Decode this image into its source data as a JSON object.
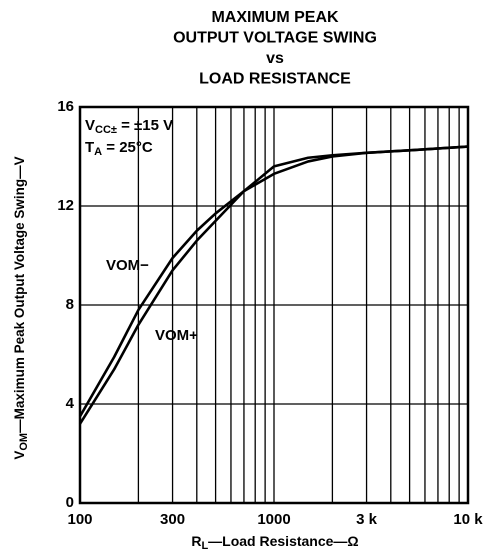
{
  "chart_data": {
    "type": "line",
    "title": [
      "MAXIMUM PEAK",
      "OUTPUT VOLTAGE SWING",
      "vs",
      "LOAD RESISTANCE"
    ],
    "annotations": [
      [
        "V",
        "CC±",
        " = ±15 V"
      ],
      [
        "T",
        "A",
        " = 25°C"
      ]
    ],
    "x_label": [
      "R",
      "L",
      "—Load Resistance—Ω"
    ],
    "y_label": [
      "V",
      "OM",
      "—Maximum Peak Output Voltage Swing—V"
    ],
    "x": [
      100,
      150,
      200,
      300,
      400,
      500,
      700,
      1000,
      1500,
      2000,
      3000,
      5000,
      10000
    ],
    "series": [
      {
        "name": "VOM−",
        "color": "#000000",
        "values": [
          3.5,
          5.9,
          7.8,
          9.9,
          11.0,
          11.7,
          12.6,
          13.3,
          13.8,
          14.0,
          14.15,
          14.25,
          14.4
        ]
      },
      {
        "name": "VOM+",
        "color": "#000000",
        "values": [
          3.2,
          5.4,
          7.2,
          9.4,
          10.6,
          11.4,
          12.6,
          13.6,
          13.95,
          14.05,
          14.15,
          14.25,
          14.4
        ]
      }
    ],
    "xlim": [
      100,
      10000
    ],
    "xlog": true,
    "xticks": [
      100,
      300,
      1000,
      {
        "value": 3000,
        "label": "3 k"
      },
      {
        "value": 10000,
        "label": "10 k"
      }
    ],
    "xgrid": [
      200,
      400,
      500,
      600,
      700,
      800,
      900,
      2000,
      4000,
      5000,
      6000,
      7000,
      8000,
      9000
    ],
    "ylim": [
      0,
      16
    ],
    "yticks": [
      0,
      4,
      8,
      12,
      16
    ],
    "grid": true
  }
}
